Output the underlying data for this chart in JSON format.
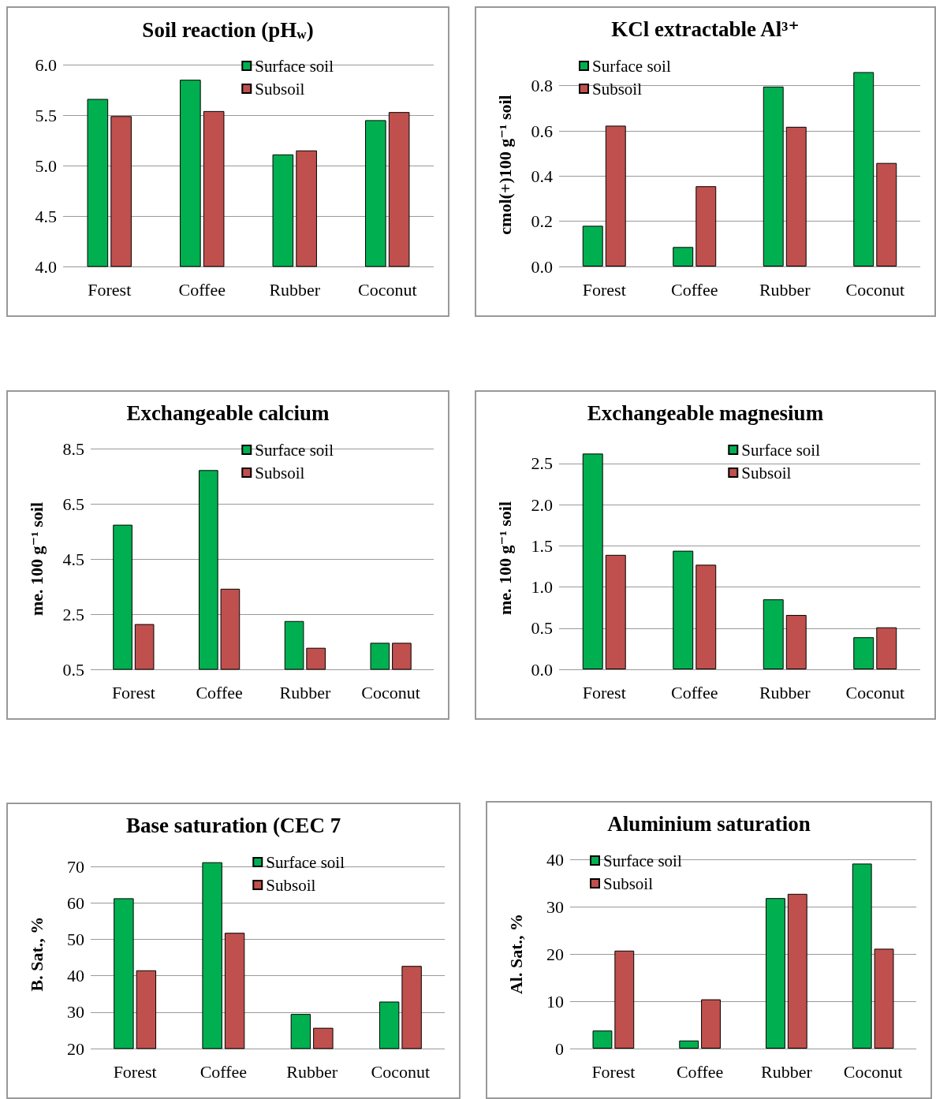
{
  "chart_data": [
    {
      "type": "bar",
      "title": "Soil reaction (pH$_{w}$)",
      "categories": [
        "Forest",
        "Coffee",
        "Rubber",
        "Coconut"
      ],
      "series": [
        {
          "name": "Surface soil",
          "color": "#00b050",
          "values": [
            5.66,
            5.85,
            5.11,
            5.45
          ]
        },
        {
          "name": "Subsoil",
          "color": "#c0504d",
          "values": [
            5.49,
            5.54,
            5.15,
            5.53
          ]
        }
      ],
      "ylim": [
        4.0,
        6.0
      ],
      "yticks": [
        {
          "value": 4,
          "label": "4.0"
        },
        4.5,
        {
          "value": 5,
          "label": "5.0"
        },
        5.5,
        {
          "value": 6,
          "label": "6.0"
        }
      ],
      "grid": "y",
      "legend": "top right"
    },
    {
      "type": "bar",
      "title": "KCl extractable Al³⁺",
      "ylabel": "cmol(+)100 g⁻¹ soil",
      "categories": [
        "Forest",
        "Coffee",
        "Rubber",
        "Coconut"
      ],
      "series": [
        {
          "name": "Surface soil",
          "color": "#00b050",
          "values": [
            0.18,
            0.086,
            0.796,
            0.86
          ]
        },
        {
          "name": "Subsoil",
          "color": "#c0504d",
          "values": [
            0.623,
            0.355,
            0.618,
            0.458
          ]
        }
      ],
      "ylim": [
        0,
        0.9
      ],
      "yticks": [
        {
          "value": 0,
          "label": "0.0"
        },
        0.2,
        0.4,
        0.6,
        0.8
      ],
      "grid": "y",
      "legend": "top left"
    },
    {
      "type": "bar",
      "title": "Exchangeable calcium",
      "ylabel": "me. 100 g⁻¹ soil",
      "categories": [
        "Forest",
        "Coffee",
        "Rubber",
        "Coconut"
      ],
      "series": [
        {
          "name": "Surface soil",
          "color": "#00b050",
          "values": [
            5.74,
            7.72,
            2.25,
            1.46
          ]
        },
        {
          "name": "Subsoil",
          "color": "#c0504d",
          "values": [
            2.14,
            3.42,
            1.28,
            1.46
          ]
        }
      ],
      "ylim": [
        0.5,
        8.5
      ],
      "yticks": [
        0.5,
        2.5,
        4.5,
        6.5,
        8.5
      ],
      "grid": "y",
      "legend": "top right"
    },
    {
      "type": "bar",
      "title": "Exchangeable magnesium",
      "ylabel": "me. 100 g⁻¹ soil",
      "categories": [
        "Forest",
        "Coffee",
        "Rubber",
        "Coconut"
      ],
      "series": [
        {
          "name": "Surface soil",
          "color": "#00b050",
          "values": [
            2.62,
            1.44,
            0.85,
            0.39
          ]
        },
        {
          "name": "Subsoil",
          "color": "#c0504d",
          "values": [
            1.39,
            1.27,
            0.66,
            0.51
          ]
        }
      ],
      "ylim": [
        0,
        2.7
      ],
      "yticks": [
        {
          "value": 0,
          "label": "0.0"
        },
        0.5,
        {
          "value": 1,
          "label": "1.0"
        },
        1.5,
        {
          "value": 2,
          "label": "2.0"
        },
        2.5
      ],
      "grid": "y",
      "legend": "top right"
    },
    {
      "type": "bar",
      "title": "Base saturation (CEC 7",
      "ylabel": "B. Sat., %",
      "categories": [
        "Forest",
        "Coffee",
        "Rubber",
        "Coconut"
      ],
      "series": [
        {
          "name": "Surface soil",
          "color": "#00b050",
          "values": [
            61.3,
            71.2,
            29.5,
            32.9
          ]
        },
        {
          "name": "Subsoil",
          "color": "#c0504d",
          "values": [
            41.5,
            51.8,
            25.7,
            42.7
          ]
        }
      ],
      "ylim": [
        20,
        72
      ],
      "yticks": [
        20,
        30,
        40,
        50,
        60,
        70
      ],
      "grid": "y",
      "legend": "top right"
    },
    {
      "type": "bar",
      "title": "Aluminium saturation",
      "ylabel": "Al. Sat., %",
      "categories": [
        "Forest",
        "Coffee",
        "Rubber",
        "Coconut"
      ],
      "series": [
        {
          "name": "Surface soil",
          "color": "#00b050",
          "values": [
            3.8,
            1.7,
            31.8,
            39.1
          ]
        },
        {
          "name": "Subsoil",
          "color": "#c0504d",
          "values": [
            20.7,
            10.4,
            32.7,
            21.1
          ]
        }
      ],
      "ylim": [
        0,
        40
      ],
      "yticks": [
        0,
        10,
        20,
        30,
        40
      ],
      "grid": "y",
      "legend": "top left"
    }
  ]
}
